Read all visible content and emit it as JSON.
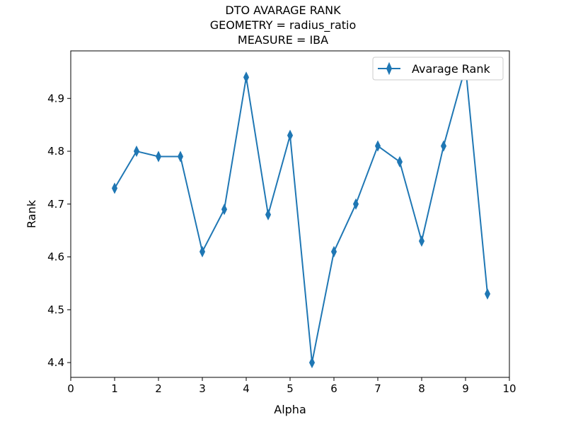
{
  "chart_data": {
    "type": "line",
    "title": [
      "DTO AVARAGE RANK",
      "GEOMETRY = radius_ratio",
      "MEASURE = IBA"
    ],
    "xlabel": "Alpha",
    "ylabel": "Rank",
    "xlim": [
      0,
      10
    ],
    "ylim": [
      4.372,
      4.99
    ],
    "xticks": [
      0,
      1,
      2,
      3,
      4,
      5,
      6,
      7,
      8,
      9,
      10
    ],
    "yticks": [
      4.4,
      4.5,
      4.6,
      4.7,
      4.8,
      4.9
    ],
    "grid": false,
    "legend": {
      "placement": "top-right"
    },
    "series": [
      {
        "name": "Avarage Rank",
        "color": "#1f77b4",
        "marker": "thin-diamond",
        "x": [
          1,
          1.5,
          2,
          2.5,
          3,
          3.5,
          4,
          4.5,
          5,
          5.5,
          6,
          6.5,
          7,
          7.5,
          8,
          8.5,
          9,
          9.5
        ],
        "y": [
          4.73,
          4.8,
          4.79,
          4.79,
          4.61,
          4.69,
          4.94,
          4.68,
          4.83,
          4.4,
          4.61,
          4.7,
          4.81,
          4.78,
          4.63,
          4.81,
          4.96,
          4.53
        ]
      }
    ]
  }
}
